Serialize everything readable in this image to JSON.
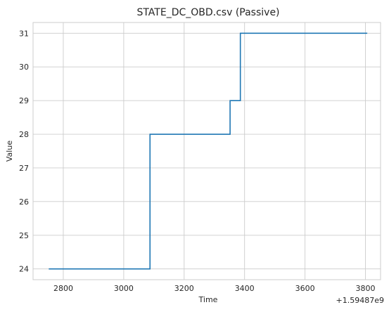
{
  "chart_data": {
    "type": "line",
    "title": "STATE_DC_OBD.csv (Passive)",
    "xlabel": "Time",
    "ylabel": "Value",
    "x_offset_label": "+1.59487e9",
    "xlim": [
      2700,
      3850
    ],
    "ylim": [
      23.68,
      31.32
    ],
    "x_ticks": [
      2800,
      3000,
      3200,
      3400,
      3600,
      3800
    ],
    "x_tick_labels": [
      "2800",
      "3000",
      "3200",
      "3400",
      "3600",
      "3800"
    ],
    "y_ticks": [
      24,
      25,
      26,
      27,
      28,
      29,
      30,
      31
    ],
    "y_tick_labels": [
      "24",
      "25",
      "26",
      "27",
      "28",
      "29",
      "30",
      "31"
    ],
    "grid": true,
    "step": "post",
    "series": [
      {
        "color": "#1f77b4",
        "x": [
          2752,
          3087,
          3352,
          3386,
          3806
        ],
        "y": [
          24,
          28,
          29,
          31,
          31
        ]
      }
    ]
  }
}
